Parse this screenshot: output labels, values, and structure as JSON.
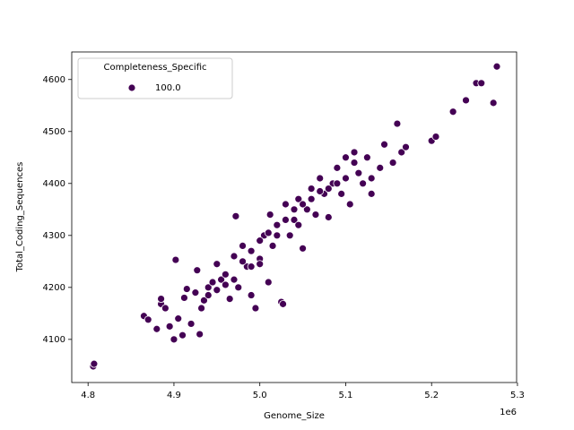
{
  "chart_data": {
    "type": "scatter",
    "xlabel": "Genome_Size",
    "ylabel": "Total_Coding_Sequences",
    "x_offset_label": "1e6",
    "legend_title": "Completeness_Specific",
    "legend": "upper left",
    "xlim": [
      4781000,
      5299000
    ],
    "ylim": [
      4017,
      4653
    ],
    "xticks": [
      {
        "value": 4800000,
        "label": "4.8"
      },
      {
        "value": 4900000,
        "label": "4.9"
      },
      {
        "value": 5000000,
        "label": "5.0"
      },
      {
        "value": 5100000,
        "label": "5.1"
      },
      {
        "value": 5200000,
        "label": "5.2"
      },
      {
        "value": 5300000,
        "label": "5.3"
      }
    ],
    "yticks": [
      4100,
      4200,
      4300,
      4400,
      4500,
      4600
    ],
    "x": [
      4806000,
      4807000,
      4865000,
      4870000,
      4880000,
      4885000,
      4885000,
      4890000,
      4895000,
      4900000,
      4902000,
      4905000,
      4910000,
      4912000,
      4915000,
      4920000,
      4925000,
      4927000,
      4930000,
      4932000,
      4935000,
      4940000,
      4945000,
      4950000,
      4955000,
      4960000,
      4965000,
      4970000,
      4972000,
      4975000,
      4980000,
      4985000,
      4990000,
      4995000,
      5000000,
      5005000,
      5010000,
      5012000,
      5015000,
      5020000,
      5025000,
      5027000,
      5030000,
      5035000,
      5040000,
      5045000,
      5050000,
      5055000,
      5060000,
      5065000,
      5070000,
      5075000,
      5080000,
      5085000,
      5090000,
      5095000,
      5100000,
      5105000,
      5110000,
      5115000,
      5120000,
      5125000,
      5130000,
      5140000,
      5145000,
      5155000,
      5160000,
      5165000,
      5170000,
      5200000,
      5205000,
      5225000,
      5240000,
      5252000,
      5258000,
      5272000,
      5276000,
      4960000,
      4970000,
      4980000,
      4990000,
      5000000,
      5010000,
      5020000,
      5030000,
      5040000,
      5050000,
      5060000,
      5070000,
      5080000,
      5090000,
      4950000,
      4940000,
      4990000,
      5000000,
      5045000,
      5110000,
      5100000,
      5130000
    ],
    "series": [
      {
        "name": "100.0",
        "color": "#440154",
        "values": [
          4048,
          4053,
          4145,
          4138,
          4120,
          4168,
          4178,
          4160,
          4125,
          4100,
          4253,
          4140,
          4108,
          4180,
          4197,
          4130,
          4190,
          4233,
          4110,
          4160,
          4175,
          4200,
          4210,
          4245,
          4215,
          4225,
          4178,
          4260,
          4337,
          4200,
          4280,
          4240,
          4185,
          4160,
          4255,
          4300,
          4210,
          4340,
          4280,
          4320,
          4172,
          4168,
          4360,
          4300,
          4330,
          4370,
          4275,
          4350,
          4390,
          4340,
          4410,
          4380,
          4335,
          4400,
          4430,
          4380,
          4450,
          4360,
          4460,
          4420,
          4400,
          4450,
          4410,
          4430,
          4475,
          4440,
          4515,
          4460,
          4470,
          4482,
          4490,
          4538,
          4560,
          4593,
          4593,
          4555,
          4625,
          4205,
          4215,
          4250,
          4270,
          4290,
          4305,
          4300,
          4330,
          4350,
          4360,
          4370,
          4385,
          4390,
          4400,
          4195,
          4185,
          4240,
          4245,
          4320,
          4440,
          4410,
          4380
        ]
      }
    ]
  }
}
